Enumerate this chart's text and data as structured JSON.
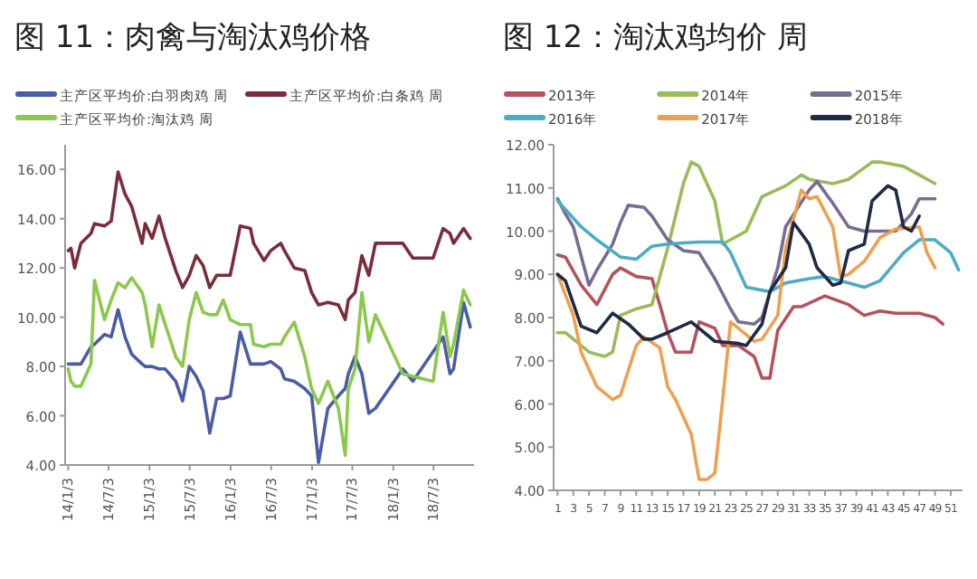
{
  "chart_data": [
    {
      "type": "line",
      "title": "图 11：肉禽与淘汰鸡价格",
      "legend": "top",
      "x": [
        "2014-01-03",
        "2014-01-15",
        "2014-02-01",
        "2014-03-01",
        "2014-04-15",
        "2014-05-01",
        "2014-06-15",
        "2014-07-15",
        "2014-08-15",
        "2014-09-15",
        "2014-10-15",
        "2014-12-01",
        "2014-12-15",
        "2015-01-15",
        "2015-02-15",
        "2015-03-15",
        "2015-05-01",
        "2015-06-01",
        "2015-07-01",
        "2015-08-01",
        "2015-09-01",
        "2015-10-01",
        "2015-11-01",
        "2015-12-01",
        "2016-01-01",
        "2016-02-15",
        "2016-04-01",
        "2016-04-15",
        "2016-06-01",
        "2016-07-01",
        "2016-08-15",
        "2016-09-01",
        "2016-10-15",
        "2016-12-01",
        "2017-01-01",
        "2017-02-01",
        "2017-03-15",
        "2017-05-01",
        "2017-06-01",
        "2017-06-15",
        "2017-07-15",
        "2017-08-15",
        "2017-09-15",
        "2017-10-15",
        "2018-02-15",
        "2018-04-01",
        "2018-07-01",
        "2018-08-15",
        "2018-09-15",
        "2018-10-01",
        "2018-11-15",
        "2018-12-15"
      ],
      "xlim": [
        "2013-12-20",
        "2019-01-01"
      ],
      "xticks": [
        {
          "value": "2014-01-03",
          "label": "14/1/3"
        },
        {
          "value": "2014-07-03",
          "label": "14/7/3"
        },
        {
          "value": "2015-01-03",
          "label": "15/1/3"
        },
        {
          "value": "2015-07-03",
          "label": "15/7/3"
        },
        {
          "value": "2016-01-03",
          "label": "16/1/3"
        },
        {
          "value": "2016-07-03",
          "label": "16/7/3"
        },
        {
          "value": "2017-01-03",
          "label": "17/1/3"
        },
        {
          "value": "2017-07-03",
          "label": "17/7/3"
        },
        {
          "value": "2018-01-03",
          "label": "18/1/3"
        },
        {
          "value": "2018-07-03",
          "label": "18/7/3"
        }
      ],
      "ylim": [
        4,
        17
      ],
      "yticks": [
        {
          "value": 4,
          "label": "4.00"
        },
        {
          "value": 6,
          "label": "6.00"
        },
        {
          "value": 8,
          "label": "8.00"
        },
        {
          "value": 10,
          "label": "10.00"
        },
        {
          "value": 12,
          "label": "12.00"
        },
        {
          "value": 14,
          "label": "14.00"
        },
        {
          "value": 16,
          "label": "16.00"
        }
      ],
      "series": [
        {
          "name": "主产区平均价:白羽肉鸡 周",
          "color": "#4a5ca6",
          "values": [
            8.1,
            8.1,
            8.1,
            8.1,
            8.8,
            8.9,
            9.3,
            9.2,
            10.3,
            9.2,
            8.5,
            8.1,
            8.0,
            8.0,
            7.9,
            7.9,
            7.4,
            6.6,
            8.0,
            7.6,
            7.0,
            5.3,
            6.7,
            6.7,
            6.8,
            9.4,
            8.1,
            8.1,
            8.1,
            8.2,
            7.9,
            7.5,
            7.4,
            7.1,
            6.8,
            4.1,
            6.3,
            6.8,
            7.1,
            7.7,
            8.4,
            7.7,
            6.1,
            6.3,
            7.9,
            7.4,
            8.6,
            9.2,
            7.7,
            7.9,
            10.6,
            9.6
          ]
        },
        {
          "name": "主产区平均价:白条鸡 周",
          "color": "#7b2c3c",
          "values": [
            12.7,
            12.8,
            12.0,
            13.0,
            13.4,
            13.8,
            13.7,
            13.9,
            15.9,
            15.0,
            14.5,
            13.0,
            13.8,
            13.2,
            14.1,
            13.2,
            11.9,
            11.2,
            11.7,
            12.5,
            12.1,
            11.2,
            11.7,
            11.7,
            11.7,
            13.7,
            13.6,
            13.0,
            12.3,
            12.7,
            13.0,
            12.7,
            12.0,
            11.9,
            11.0,
            10.5,
            10.6,
            10.5,
            9.9,
            10.7,
            11.0,
            12.5,
            11.7,
            13.0,
            13.0,
            12.4,
            12.4,
            13.6,
            13.4,
            13.0,
            13.6,
            13.2
          ]
        },
        {
          "name": "主产区平均价:淘汰鸡 周",
          "color": "#8cc84b",
          "values": [
            7.9,
            7.4,
            7.2,
            7.2,
            8.1,
            11.5,
            9.9,
            10.7,
            11.4,
            11.2,
            11.6,
            11.0,
            10.5,
            8.8,
            10.5,
            9.7,
            8.4,
            8.0,
            9.9,
            11.0,
            10.2,
            10.1,
            10.1,
            10.7,
            9.9,
            9.7,
            9.7,
            8.9,
            8.8,
            8.9,
            8.9,
            9.2,
            9.8,
            8.4,
            7.1,
            6.5,
            7.4,
            6.3,
            4.4,
            7.1,
            7.9,
            11.0,
            9.0,
            10.1,
            7.7,
            7.6,
            7.4,
            10.2,
            8.4,
            8.9,
            11.1,
            10.5
          ]
        }
      ]
    },
    {
      "type": "line",
      "title": "图 12：淘汰鸡均价 周",
      "legend": "top",
      "xlim": [
        0.5,
        52.5
      ],
      "xticks": [
        1,
        3,
        5,
        7,
        9,
        11,
        13,
        15,
        17,
        19,
        21,
        23,
        25,
        27,
        29,
        31,
        33,
        35,
        37,
        39,
        41,
        43,
        45,
        47,
        49,
        51
      ],
      "ylim": [
        4,
        12
      ],
      "yticks": [
        {
          "value": 4,
          "label": "4.00"
        },
        {
          "value": 5,
          "label": "5.00"
        },
        {
          "value": 6,
          "label": "6.00"
        },
        {
          "value": 7,
          "label": "7.00"
        },
        {
          "value": 8,
          "label": "8.00"
        },
        {
          "value": 9,
          "label": "9.00"
        },
        {
          "value": 10,
          "label": "10.00"
        },
        {
          "value": 11,
          "label": "11.00"
        },
        {
          "value": 12,
          "label": "12.00"
        }
      ],
      "series": [
        {
          "name": "2013年",
          "color": "#b5525c",
          "x": [
            1,
            2,
            4,
            6,
            8,
            9,
            11,
            13,
            14,
            15,
            16,
            18,
            19,
            21,
            22,
            24,
            26,
            27,
            28,
            29,
            31,
            32,
            35,
            38,
            40,
            42,
            44,
            47,
            49,
            50
          ],
          "values": [
            9.45,
            9.4,
            8.75,
            8.3,
            9.0,
            9.15,
            8.95,
            8.9,
            8.3,
            7.65,
            7.2,
            7.2,
            7.9,
            7.75,
            7.35,
            7.35,
            7.1,
            6.6,
            6.6,
            7.7,
            8.25,
            8.25,
            8.5,
            8.3,
            8.05,
            8.15,
            8.1,
            8.1,
            8.0,
            7.85
          ]
        },
        {
          "name": "2014年",
          "color": "#9bbb59",
          "x": [
            1,
            2,
            5,
            7,
            8,
            9,
            11,
            13,
            15,
            17,
            18,
            19,
            21,
            22,
            23,
            25,
            27,
            30,
            32,
            33,
            36,
            38,
            41,
            42,
            45,
            47,
            49
          ],
          "values": [
            7.65,
            7.65,
            7.2,
            7.1,
            7.2,
            8.05,
            8.2,
            8.3,
            9.6,
            11.1,
            11.6,
            11.5,
            10.7,
            9.7,
            9.8,
            10.0,
            10.8,
            11.05,
            11.3,
            11.2,
            11.1,
            11.2,
            11.6,
            11.6,
            11.5,
            11.3,
            11.1
          ]
        },
        {
          "name": "2015年",
          "color": "#7a6b92",
          "x": [
            1,
            2,
            3,
            5,
            6,
            8,
            9,
            10,
            12,
            13,
            15,
            17,
            19,
            21,
            23,
            24,
            26,
            27,
            29,
            30,
            33,
            34,
            36,
            38,
            40,
            42,
            44,
            46,
            47,
            49
          ],
          "values": [
            10.75,
            10.4,
            10.1,
            8.75,
            9.1,
            9.7,
            10.2,
            10.6,
            10.55,
            10.35,
            9.8,
            9.55,
            9.5,
            8.9,
            8.2,
            7.9,
            7.85,
            8.0,
            9.15,
            10.1,
            10.95,
            11.15,
            10.65,
            10.1,
            10.0,
            10.0,
            10.0,
            10.4,
            10.75,
            10.75
          ]
        },
        {
          "name": "2016年",
          "color": "#4bacc6",
          "x": [
            1,
            4,
            6,
            9,
            11,
            13,
            15,
            19,
            22,
            23,
            25,
            28,
            30,
            33,
            35,
            38,
            40,
            42,
            45,
            47,
            49,
            51,
            52
          ],
          "values": [
            10.7,
            10.1,
            9.8,
            9.4,
            9.35,
            9.65,
            9.7,
            9.75,
            9.75,
            9.5,
            8.7,
            8.6,
            8.8,
            8.9,
            8.95,
            8.8,
            8.7,
            8.85,
            9.5,
            9.8,
            9.8,
            9.5,
            9.1
          ]
        },
        {
          "name": "2017年",
          "color": "#eea04e",
          "x": [
            1,
            3,
            4,
            6,
            8,
            9,
            11,
            12,
            14,
            15,
            16,
            18,
            19,
            20,
            21,
            22,
            23,
            24,
            26,
            27,
            29,
            30,
            32,
            33,
            34,
            36,
            37,
            38,
            40,
            42,
            44,
            47,
            48,
            49
          ],
          "values": [
            9.0,
            8.05,
            7.2,
            6.4,
            6.1,
            6.2,
            7.35,
            7.55,
            7.3,
            6.4,
            6.1,
            5.3,
            4.25,
            4.25,
            4.4,
            6.1,
            7.9,
            7.75,
            7.45,
            7.5,
            8.05,
            9.6,
            10.95,
            10.75,
            10.8,
            10.1,
            8.95,
            9.0,
            9.3,
            9.85,
            10.05,
            10.1,
            9.5,
            9.15
          ]
        },
        {
          "name": "2018年",
          "color": "#1f2a44",
          "x": [
            1,
            2,
            4,
            6,
            8,
            10,
            12,
            13,
            15,
            18,
            19,
            21,
            24,
            25,
            27,
            28,
            30,
            31,
            33,
            34,
            36,
            37,
            38,
            40,
            41,
            43,
            44,
            45,
            46,
            47
          ],
          "values": [
            9.0,
            8.85,
            7.8,
            7.65,
            8.1,
            7.85,
            7.5,
            7.5,
            7.65,
            7.9,
            7.75,
            7.45,
            7.4,
            7.35,
            7.85,
            8.6,
            9.15,
            10.2,
            9.7,
            9.15,
            8.75,
            8.8,
            9.55,
            9.7,
            10.7,
            11.05,
            10.95,
            10.1,
            10.0,
            10.35
          ]
        }
      ]
    }
  ]
}
